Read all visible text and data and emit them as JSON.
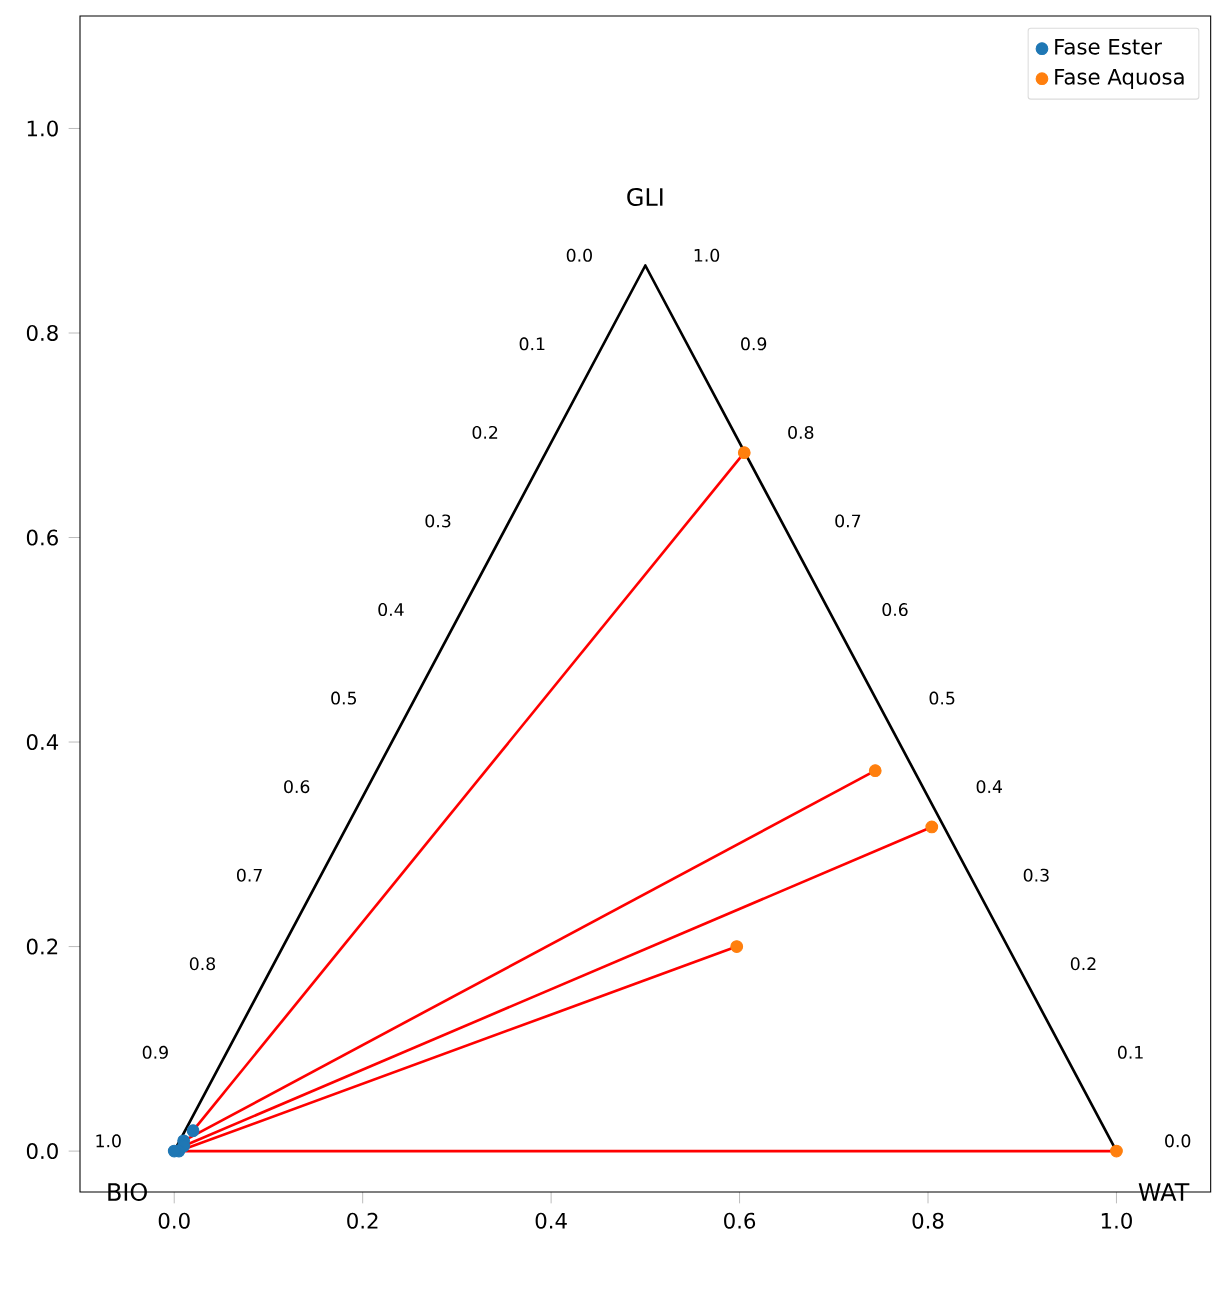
{
  "chart_data": {
    "type": "scatter",
    "legend": "top right",
    "xlim": [
      -0.1,
      1.1
    ],
    "ylim": [
      -0.04,
      1.11
    ],
    "xticks": [
      {
        "value": 0,
        "label": "0.0"
      },
      {
        "value": 0.2,
        "label": "0.2"
      },
      {
        "value": 0.4,
        "label": "0.4"
      },
      {
        "value": 0.6,
        "label": "0.6"
      },
      {
        "value": 0.8,
        "label": "0.8"
      },
      {
        "value": 1,
        "label": "1.0"
      }
    ],
    "yticks": [
      {
        "value": 0,
        "label": "0.0"
      },
      {
        "value": 0.2,
        "label": "0.2"
      },
      {
        "value": 0.4,
        "label": "0.4"
      },
      {
        "value": 0.6,
        "label": "0.6"
      },
      {
        "value": 0.8,
        "label": "0.8"
      },
      {
        "value": 1,
        "label": "1.0"
      }
    ],
    "annotations": [
      "GLI",
      "BIO",
      "WAT",
      "0.0",
      "0.1",
      "0.2",
      "0.3",
      "0.4",
      "0.5",
      "0.6",
      "0.7",
      "0.8",
      "0.9",
      "1.0",
      "1.0",
      "0.9",
      "0.8",
      "0.7",
      "0.6",
      "0.5",
      "0.4",
      "0.3",
      "0.2",
      "0.1",
      "0.0"
    ],
    "series": [
      {
        "type": "line",
        "marker": "none",
        "color": "#000000",
        "x": [
          0,
          0.5,
          1
        ],
        "values": [
          0,
          0.866,
          0
        ]
      },
      {
        "type": "line",
        "marker": "none",
        "color": "#ff0000",
        "x": [
          0.02,
          0.605
        ],
        "values": [
          0.02,
          0.683
        ]
      },
      {
        "type": "line",
        "marker": "none",
        "color": "#ff0000",
        "x": [
          0.01,
          0.744
        ],
        "values": [
          0.01,
          0.372
        ]
      },
      {
        "type": "line",
        "marker": "none",
        "color": "#ff0000",
        "x": [
          0.01,
          0.804
        ],
        "values": [
          0.005,
          0.317
        ]
      },
      {
        "type": "line",
        "marker": "none",
        "color": "#ff0000",
        "x": [
          0.005,
          0.597
        ],
        "values": [
          0,
          0.2
        ]
      },
      {
        "type": "line",
        "marker": "none",
        "color": "#ff0000",
        "x": [
          0,
          1
        ],
        "values": [
          0,
          0
        ]
      },
      {
        "marker": "circle",
        "name": "Fase Ester",
        "color": "#1f77b4",
        "x": [
          0.02,
          0.01,
          0.01,
          0.005,
          0
        ],
        "values": [
          0.02,
          0.01,
          0.005,
          0,
          0
        ]
      },
      {
        "marker": "circle",
        "name": "Fase Aquosa",
        "color": "#ff7f0e",
        "x": [
          0.605,
          0.744,
          0.804,
          0.597,
          1
        ],
        "values": [
          0.683,
          0.372,
          0.317,
          0.2,
          0
        ]
      }
    ]
  }
}
